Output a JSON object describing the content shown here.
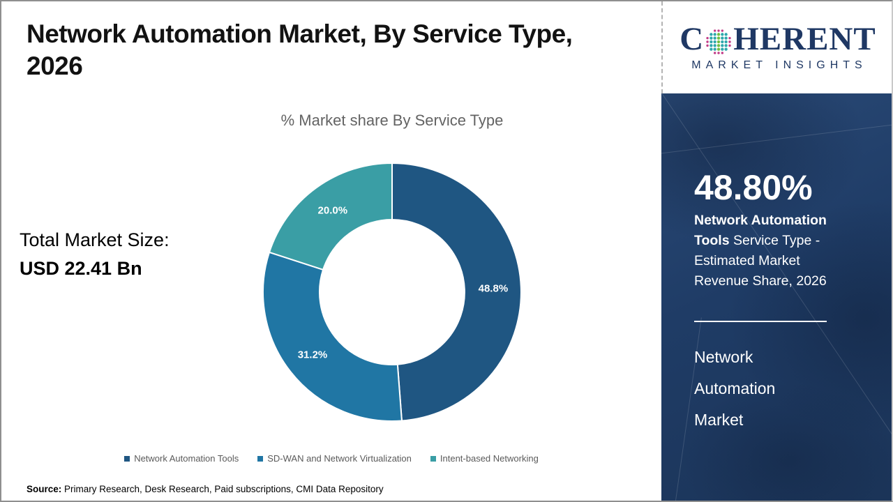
{
  "header": {
    "title_line1": "Network Automation Market,  By Service Type,",
    "title_line2": "2026"
  },
  "logo": {
    "letter_c": "C",
    "letters_rest": "HERENT",
    "subtitle": "MARKET INSIGHTS",
    "globe_colors": {
      "teal": "#2FA8AD",
      "green": "#70BE44",
      "magenta": "#C13C87"
    },
    "brand_color": "#1F3864"
  },
  "main": {
    "total_label": "Total Market Size:",
    "total_value": "USD 22.41 Bn",
    "source_label": "Source:",
    "source_text": " Primary Research, Desk Research, Paid subscriptions, CMI Data Repository"
  },
  "chart_data": {
    "type": "pie",
    "donut": true,
    "title": "% Market share  By Service Type",
    "start_angle": "top",
    "direction": "clockwise",
    "legend_position": "bottom",
    "units": "%",
    "categories": [
      "Network Automation Tools",
      "SD-WAN and Network Virtualization",
      "Intent-based Networking"
    ],
    "values": [
      48.8,
      31.2,
      20.0
    ],
    "series": [
      {
        "name": "Network Automation Tools",
        "value": 48.8,
        "label": "48.8%",
        "color": "#1F5682"
      },
      {
        "name": "SD-WAN and Network Virtualization",
        "value": 31.2,
        "label": "31.2%",
        "color": "#2076A4"
      },
      {
        "name": "Intent-based Networking",
        "value": 20.0,
        "label": "20.0%",
        "color": "#3A9EA5"
      }
    ]
  },
  "sidebar": {
    "stat_value": "48.80%",
    "stat_bold": "Network Automation Tools",
    "stat_rest": "Service Type - Estimated Market Revenue Share, 2026",
    "market_name_lines": [
      "Network",
      "Automation",
      "Market"
    ],
    "background": "#1E3A63"
  }
}
